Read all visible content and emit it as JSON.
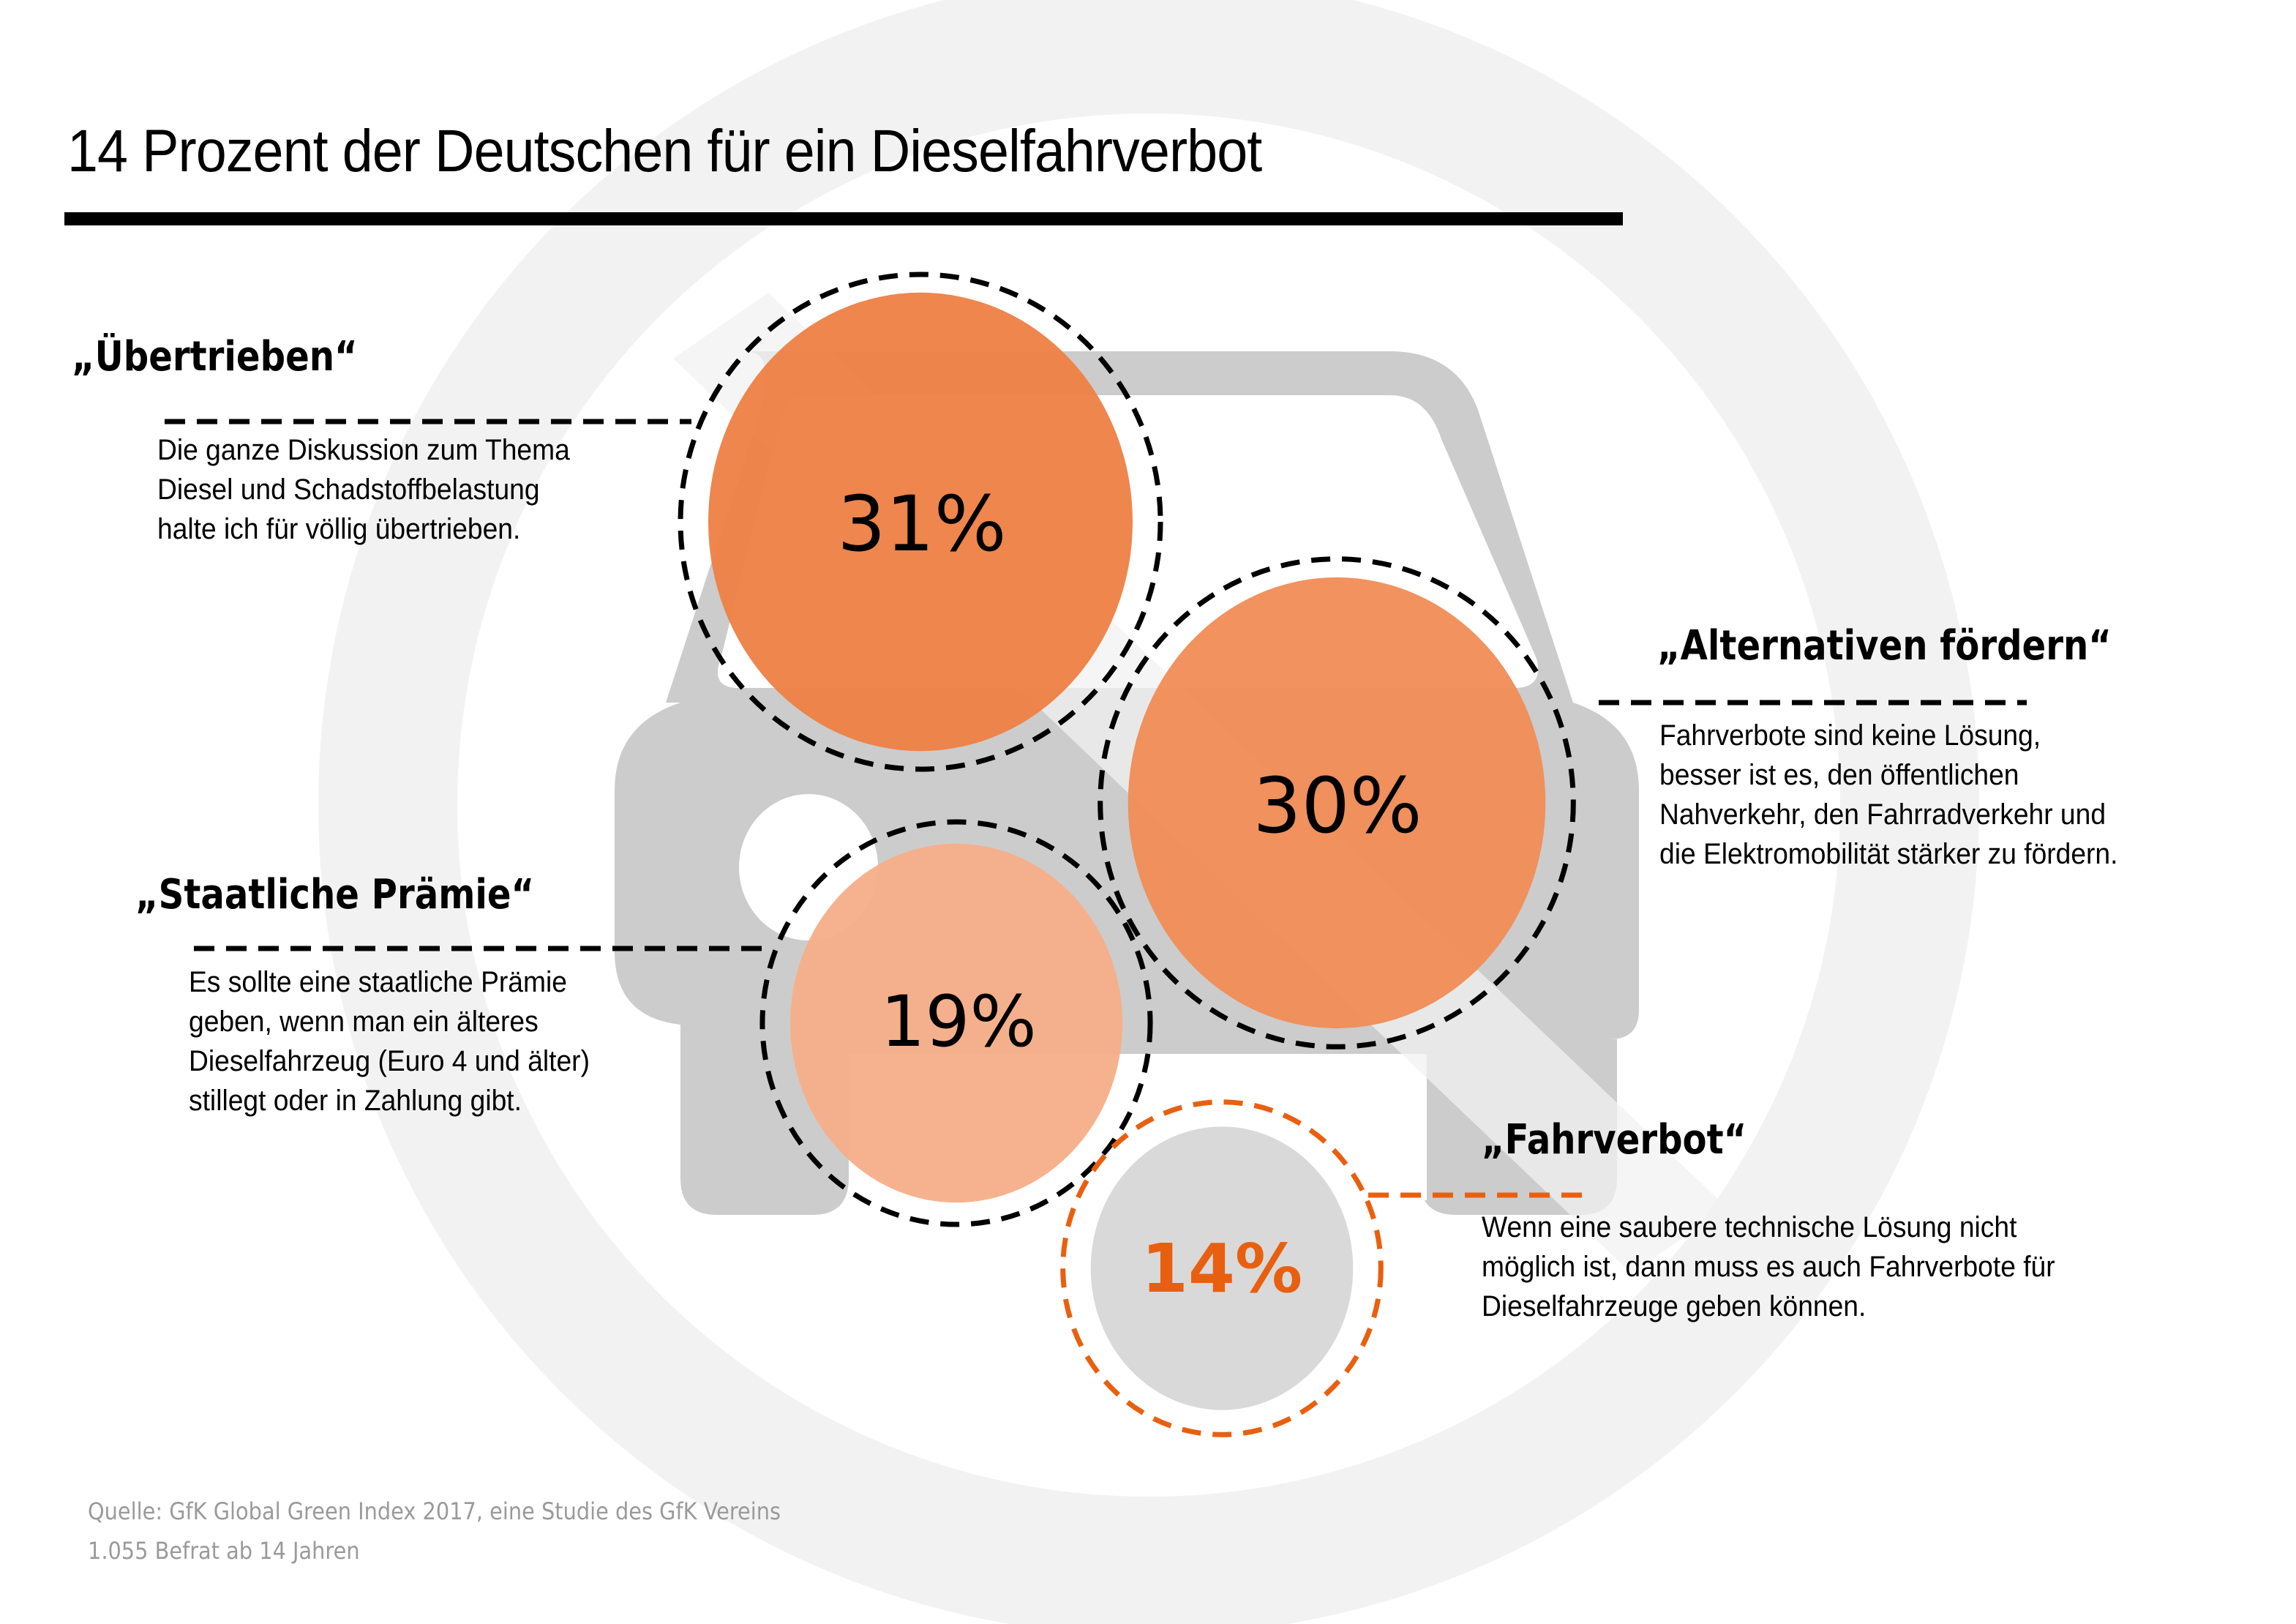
{
  "title": "14 Prozent der Deutschen für ein Dieselfahrverbot",
  "colors": {
    "bubble_31": "#ed7f43",
    "bubble_30": "#f08c56",
    "bubble_19": "#f5ae88",
    "bubble_14": "#d9d9d9",
    "accent_orange": "#e8600f",
    "car_gray": "#cccccc",
    "prohibition_gray": "#f2f2f2",
    "source_gray": "#9a9a9a"
  },
  "chart_data": {
    "type": "bubble",
    "title": "14 Prozent der Deutschen für ein Dieselfahrverbot",
    "unit": "%",
    "categories": [
      "„Übertrieben“",
      "„Alternativen fördern“",
      "„Staatliche Prämie“",
      "„Fahrverbot“"
    ],
    "values": [
      31,
      30,
      19,
      14
    ],
    "labels": [
      "31%",
      "30%",
      "19%",
      "14%"
    ]
  },
  "items": [
    {
      "heading": "„Übertrieben“",
      "value_label": "31%",
      "text": "Die ganze Diskussion zum Thema\nDiesel und Schadstoffbelastung\nhalte ich für völlig übertrieben."
    },
    {
      "heading": "„Alternativen fördern“",
      "value_label": "30%",
      "text": "Fahrverbote sind keine Lösung,\nbesser ist es, den öffentlichen\nNahverkehr, den Fahrradverkehr und\ndie Elektromobilität stärker zu fördern."
    },
    {
      "heading": "„Staatliche Prämie“",
      "value_label": "19%",
      "text": "Es sollte eine staatliche Prämie\ngeben, wenn man ein älteres\nDieselfahrzeug (Euro 4 und älter)\nstillegt oder in Zahlung gibt."
    },
    {
      "heading": "„Fahrverbot“",
      "value_label": "14%",
      "text": "Wenn eine saubere technische Lösung nicht\nmöglich ist, dann muss es auch Fahrverbote für\nDieselfahrzeuge geben können."
    }
  ],
  "source": {
    "line1": "Quelle: GfK Global Green Index 2017, eine Studie des GfK Vereins",
    "line2": "1.055 Befrat ab 14 Jahren"
  }
}
